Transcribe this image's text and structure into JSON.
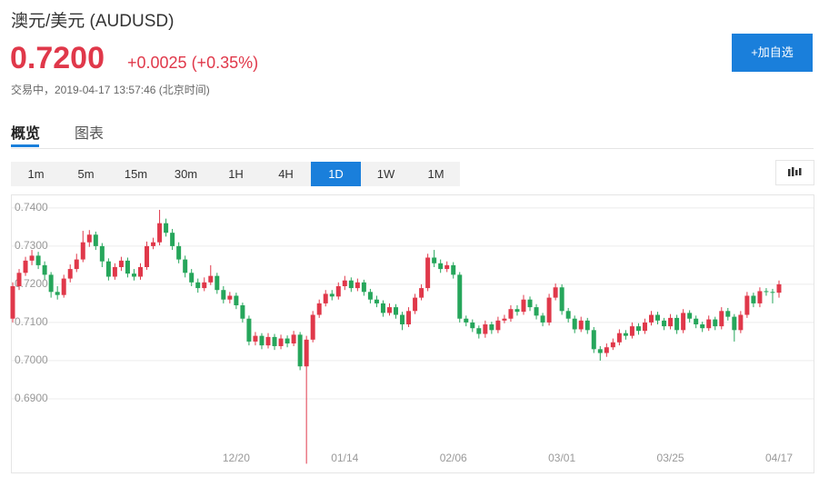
{
  "header": {
    "title": "澳元/美元  (AUDUSD)",
    "price": "0.7200",
    "change": "+0.0025 (+0.35%)",
    "status": "交易中，2019-04-17 13:57:46 (北京时间)",
    "button": "+加自选"
  },
  "tabs": [
    "概览",
    "图表"
  ],
  "intervals": [
    "1m",
    "5m",
    "15m",
    "30m",
    "1H",
    "4H",
    "1D",
    "1W",
    "1M"
  ],
  "chart_data": {
    "type": "candlestick",
    "up_color": "#e0384a",
    "down_color": "#26a65b",
    "grid": true,
    "ylim": [
      0.6719,
      0.7433
    ],
    "yticks": [
      {
        "value": 0.74,
        "label": "0.7400"
      },
      {
        "value": 0.73,
        "label": "0.7300"
      },
      {
        "value": 0.72,
        "label": "0.7200"
      },
      {
        "value": 0.71,
        "label": "0.7100"
      },
      {
        "value": 0.7,
        "label": "0.7000"
      },
      {
        "value": 0.69,
        "label": "0.6900"
      }
    ],
    "categories": [
      null,
      null,
      null,
      null,
      null,
      null,
      null,
      null,
      null,
      null,
      null,
      null,
      null,
      null,
      null,
      null,
      null,
      null,
      null,
      null,
      null,
      null,
      null,
      null,
      null,
      null,
      null,
      null,
      null,
      null,
      null,
      null,
      null,
      null,
      null,
      "12/20",
      null,
      null,
      null,
      null,
      null,
      null,
      null,
      null,
      null,
      null,
      null,
      null,
      null,
      null,
      null,
      null,
      "01/14",
      null,
      null,
      null,
      null,
      null,
      null,
      null,
      null,
      null,
      null,
      null,
      null,
      null,
      null,
      null,
      null,
      "02/06",
      null,
      null,
      null,
      null,
      null,
      null,
      null,
      null,
      null,
      null,
      null,
      null,
      null,
      null,
      null,
      null,
      "03/01",
      null,
      null,
      null,
      null,
      null,
      null,
      null,
      null,
      null,
      null,
      null,
      null,
      null,
      null,
      null,
      null,
      "03/25",
      null,
      null,
      null,
      null,
      null,
      null,
      null,
      null,
      null,
      null,
      null,
      null,
      null,
      null,
      null,
      null,
      "04/17"
    ],
    "open": [
      0.711,
      0.7195,
      0.723,
      0.7262,
      0.7275,
      0.725,
      0.7225,
      0.718,
      0.7172,
      0.7215,
      0.724,
      0.7265,
      0.731,
      0.733,
      0.73,
      0.726,
      0.722,
      0.7245,
      0.7262,
      0.7228,
      0.722,
      0.7245,
      0.73,
      0.731,
      0.736,
      0.7335,
      0.73,
      0.7265,
      0.723,
      0.7205,
      0.719,
      0.7205,
      0.7222,
      0.7185,
      0.716,
      0.717,
      0.7145,
      0.711,
      0.705,
      0.7065,
      0.704,
      0.7062,
      0.7038,
      0.7058,
      0.7045,
      0.7068,
      0.6985,
      0.7055,
      0.712,
      0.715,
      0.7175,
      0.7168,
      0.7195,
      0.721,
      0.719,
      0.7205,
      0.718,
      0.716,
      0.715,
      0.7125,
      0.714,
      0.712,
      0.7095,
      0.713,
      0.7165,
      0.719,
      0.727,
      0.7255,
      0.724,
      0.725,
      0.7225,
      0.711,
      0.71,
      0.7085,
      0.707,
      0.7095,
      0.708,
      0.7105,
      0.711,
      0.7135,
      0.7128,
      0.716,
      0.714,
      0.7118,
      0.71,
      0.7165,
      0.7192,
      0.713,
      0.711,
      0.7082,
      0.7105,
      0.708,
      0.703,
      0.702,
      0.7035,
      0.7048,
      0.7072,
      0.7065,
      0.709,
      0.7078,
      0.71,
      0.712,
      0.7105,
      0.709,
      0.7112,
      0.708,
      0.7125,
      0.711,
      0.7095,
      0.7085,
      0.7108,
      0.709,
      0.713,
      0.7115,
      0.708,
      0.712,
      0.717,
      0.715,
      0.7182,
      0.718,
      0.7178
    ],
    "high": [
      0.7205,
      0.724,
      0.7272,
      0.729,
      0.7285,
      0.726,
      0.7232,
      0.7195,
      0.7225,
      0.7252,
      0.728,
      0.734,
      0.7342,
      0.7338,
      0.7308,
      0.7268,
      0.7255,
      0.7272,
      0.727,
      0.724,
      0.7255,
      0.7312,
      0.7322,
      0.7395,
      0.7372,
      0.7345,
      0.731,
      0.7275,
      0.724,
      0.7215,
      0.7218,
      0.725,
      0.723,
      0.7195,
      0.718,
      0.7178,
      0.7152,
      0.7118,
      0.7075,
      0.7072,
      0.7072,
      0.707,
      0.7068,
      0.7066,
      0.7078,
      0.7075,
      0.7065,
      0.713,
      0.716,
      0.7185,
      0.7185,
      0.7205,
      0.7222,
      0.7218,
      0.7215,
      0.7212,
      0.7188,
      0.717,
      0.7158,
      0.715,
      0.7148,
      0.7128,
      0.714,
      0.7175,
      0.72,
      0.728,
      0.729,
      0.7265,
      0.726,
      0.7258,
      0.7232,
      0.7118,
      0.7108,
      0.7092,
      0.7105,
      0.7102,
      0.7115,
      0.712,
      0.7145,
      0.7145,
      0.7172,
      0.7168,
      0.7148,
      0.7125,
      0.7175,
      0.7202,
      0.72,
      0.7138,
      0.7118,
      0.7115,
      0.7112,
      0.7088,
      0.7038,
      0.7045,
      0.7058,
      0.7082,
      0.708,
      0.71,
      0.7098,
      0.711,
      0.713,
      0.7128,
      0.7112,
      0.7122,
      0.712,
      0.7135,
      0.7132,
      0.7118,
      0.7102,
      0.7118,
      0.7115,
      0.714,
      0.7138,
      0.7122,
      0.713,
      0.718,
      0.7178,
      0.7192,
      0.719,
      0.7188,
      0.721
    ],
    "low": [
      0.71,
      0.7185,
      0.7222,
      0.725,
      0.724,
      0.7212,
      0.7165,
      0.716,
      0.7165,
      0.7205,
      0.7232,
      0.7258,
      0.7298,
      0.729,
      0.7245,
      0.721,
      0.7212,
      0.7235,
      0.7218,
      0.721,
      0.7212,
      0.7238,
      0.7292,
      0.7302,
      0.7325,
      0.729,
      0.7255,
      0.7218,
      0.7195,
      0.7178,
      0.7182,
      0.7198,
      0.7175,
      0.715,
      0.715,
      0.7135,
      0.71,
      0.704,
      0.704,
      0.703,
      0.7032,
      0.7028,
      0.703,
      0.7035,
      0.7038,
      0.6975,
      0.673,
      0.7048,
      0.7112,
      0.7142,
      0.7158,
      0.716,
      0.7185,
      0.718,
      0.7182,
      0.717,
      0.715,
      0.714,
      0.7115,
      0.7118,
      0.711,
      0.708,
      0.7088,
      0.7122,
      0.7158,
      0.7182,
      0.7245,
      0.723,
      0.7232,
      0.7215,
      0.71,
      0.709,
      0.7075,
      0.7058,
      0.706,
      0.707,
      0.7072,
      0.7098,
      0.7102,
      0.7118,
      0.712,
      0.713,
      0.7108,
      0.709,
      0.7092,
      0.7158,
      0.712,
      0.71,
      0.7072,
      0.7075,
      0.707,
      0.702,
      0.7,
      0.701,
      0.7028,
      0.704,
      0.7055,
      0.7058,
      0.7068,
      0.707,
      0.7092,
      0.7095,
      0.708,
      0.7082,
      0.707,
      0.7072,
      0.71,
      0.7085,
      0.7075,
      0.7078,
      0.708,
      0.7082,
      0.7105,
      0.705,
      0.7072,
      0.7112,
      0.714,
      0.714,
      0.717,
      0.715,
      0.7165
    ],
    "close": [
      0.7195,
      0.723,
      0.7262,
      0.7275,
      0.725,
      0.7225,
      0.718,
      0.7172,
      0.7215,
      0.724,
      0.7265,
      0.731,
      0.733,
      0.73,
      0.726,
      0.722,
      0.7245,
      0.7262,
      0.7228,
      0.722,
      0.7245,
      0.73,
      0.731,
      0.736,
      0.7335,
      0.73,
      0.7265,
      0.723,
      0.7205,
      0.719,
      0.7205,
      0.7222,
      0.7185,
      0.716,
      0.717,
      0.7145,
      0.711,
      0.705,
      0.7065,
      0.704,
      0.7062,
      0.7038,
      0.7058,
      0.7045,
      0.7068,
      0.6985,
      0.7055,
      0.712,
      0.715,
      0.7175,
      0.7168,
      0.7195,
      0.721,
      0.719,
      0.7205,
      0.718,
      0.716,
      0.715,
      0.7125,
      0.714,
      0.712,
      0.7095,
      0.713,
      0.7165,
      0.719,
      0.727,
      0.7255,
      0.724,
      0.725,
      0.7225,
      0.711,
      0.71,
      0.7085,
      0.707,
      0.7095,
      0.708,
      0.7105,
      0.711,
      0.7135,
      0.7128,
      0.716,
      0.714,
      0.7118,
      0.71,
      0.7165,
      0.7192,
      0.713,
      0.711,
      0.7082,
      0.7105,
      0.708,
      0.703,
      0.702,
      0.7035,
      0.7048,
      0.7072,
      0.7065,
      0.709,
      0.7078,
      0.71,
      0.712,
      0.7105,
      0.709,
      0.7112,
      0.708,
      0.7125,
      0.711,
      0.7095,
      0.7085,
      0.7108,
      0.709,
      0.713,
      0.7115,
      0.708,
      0.712,
      0.717,
      0.715,
      0.7182,
      0.718,
      0.7178,
      0.72
    ]
  }
}
